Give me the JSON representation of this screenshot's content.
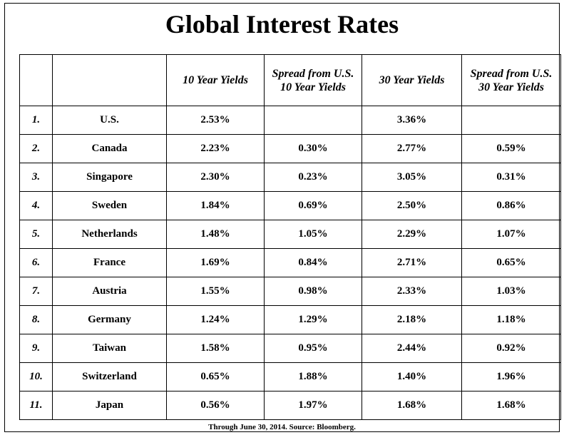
{
  "title": "Global Interest Rates",
  "headers": {
    "rank": "",
    "country": "",
    "yield10": "10 Year Yields",
    "spread10": "Spread from U.S. 10 Year Yields",
    "yield30": "30 Year Yields",
    "spread30": "Spread from U.S. 30 Year Yields"
  },
  "rows": [
    {
      "rank": "1.",
      "country": "U.S.",
      "yield10": "2.53%",
      "spread10": "",
      "yield30": "3.36%",
      "spread30": ""
    },
    {
      "rank": "2.",
      "country": "Canada",
      "yield10": "2.23%",
      "spread10": "0.30%",
      "yield30": "2.77%",
      "spread30": "0.59%"
    },
    {
      "rank": "3.",
      "country": "Singapore",
      "yield10": "2.30%",
      "spread10": "0.23%",
      "yield30": "3.05%",
      "spread30": "0.31%"
    },
    {
      "rank": "4.",
      "country": "Sweden",
      "yield10": "1.84%",
      "spread10": "0.69%",
      "yield30": "2.50%",
      "spread30": "0.86%"
    },
    {
      "rank": "5.",
      "country": "Netherlands",
      "yield10": "1.48%",
      "spread10": "1.05%",
      "yield30": "2.29%",
      "spread30": "1.07%"
    },
    {
      "rank": "6.",
      "country": "France",
      "yield10": "1.69%",
      "spread10": "0.84%",
      "yield30": "2.71%",
      "spread30": "0.65%"
    },
    {
      "rank": "7.",
      "country": "Austria",
      "yield10": "1.55%",
      "spread10": "0.98%",
      "yield30": "2.33%",
      "spread30": "1.03%"
    },
    {
      "rank": "8.",
      "country": "Germany",
      "yield10": "1.24%",
      "spread10": "1.29%",
      "yield30": "2.18%",
      "spread30": "1.18%"
    },
    {
      "rank": "9.",
      "country": "Taiwan",
      "yield10": "1.58%",
      "spread10": "0.95%",
      "yield30": "2.44%",
      "spread30": "0.92%"
    },
    {
      "rank": "10.",
      "country": "Switzerland",
      "yield10": "0.65%",
      "spread10": "1.88%",
      "yield30": "1.40%",
      "spread30": "1.96%"
    },
    {
      "rank": "11.",
      "country": "Japan",
      "yield10": "0.56%",
      "spread10": "1.97%",
      "yield30": "1.68%",
      "spread30": "1.68%"
    }
  ],
  "footer": "Through June 30, 2014.  Source: Bloomberg."
}
